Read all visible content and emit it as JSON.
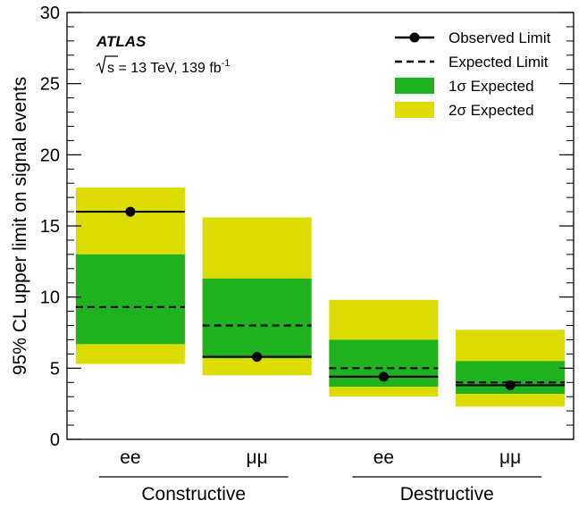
{
  "chart_data": {
    "type": "bar",
    "experiment": "ATLAS",
    "energy_text": "s = 13 TeV, 139 fb",
    "lumi_exponent": "-1",
    "ylabel": "95% CL upper limit on signal events",
    "ylim": [
      0,
      30
    ],
    "yticks": [
      "0",
      "5",
      "10",
      "15",
      "20",
      "25",
      "30"
    ],
    "categories": [
      "ee",
      "μμ",
      "ee",
      "μμ"
    ],
    "groups": [
      {
        "label": "Constructive",
        "category_indices": [
          0,
          1
        ]
      },
      {
        "label": "Destructive",
        "category_indices": [
          2,
          3
        ]
      }
    ],
    "observed": [
      16.0,
      5.8,
      4.4,
      3.8
    ],
    "expected": [
      9.3,
      8.0,
      5.0,
      4.0
    ],
    "band_1sigma": [
      [
        6.7,
        13.0
      ],
      [
        5.7,
        11.3
      ],
      [
        3.7,
        7.0
      ],
      [
        3.2,
        5.5
      ]
    ],
    "band_2sigma": [
      [
        5.3,
        17.7
      ],
      [
        4.5,
        15.6
      ],
      [
        3.0,
        9.8
      ],
      [
        2.3,
        7.7
      ]
    ],
    "legend": {
      "position": "top-right",
      "entries": [
        {
          "label": "Observed Limit",
          "style": "solid-line-marker"
        },
        {
          "label": "Expected Limit",
          "style": "dashed-line"
        },
        {
          "label": "1σ Expected",
          "style": "box",
          "color": "#1fb21f"
        },
        {
          "label": "2σ Expected",
          "style": "box",
          "color": "#dcdc00"
        }
      ]
    },
    "colors": {
      "band_1sigma": "#1fb21f",
      "band_2sigma": "#dcdc00",
      "line": "#000000"
    }
  }
}
